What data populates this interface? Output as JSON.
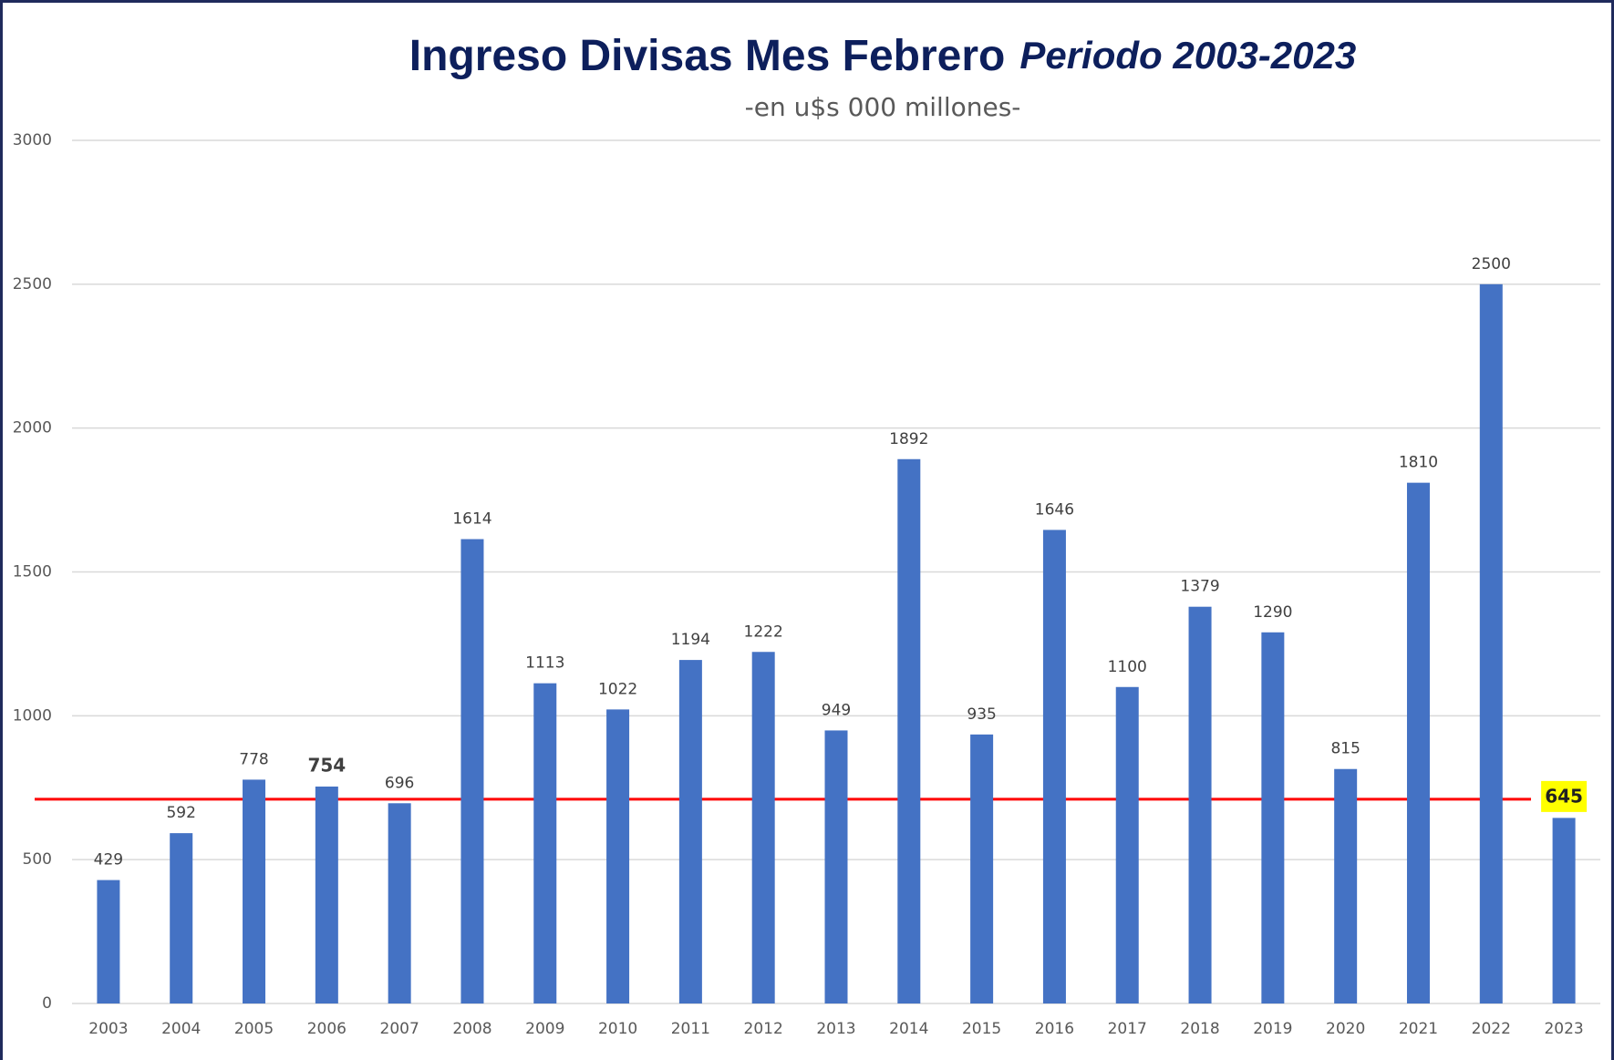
{
  "chart_data": {
    "type": "bar",
    "title": "Ingreso Divisas  Mes Febrero",
    "title_suffix": "Periodo 2003-2023",
    "subtitle": "-en u$s 000 millones-",
    "categories": [
      "2003",
      "2004",
      "2005",
      "2006",
      "2007",
      "2008",
      "2009",
      "2010",
      "2011",
      "2012",
      "2013",
      "2014",
      "2015",
      "2016",
      "2017",
      "2018",
      "2019",
      "2020",
      "2021",
      "2022",
      "2023"
    ],
    "values": [
      429,
      592,
      778,
      754,
      696,
      1614,
      1113,
      1022,
      1194,
      1222,
      949,
      1892,
      935,
      1646,
      1100,
      1379,
      1290,
      815,
      1810,
      2500,
      645
    ],
    "color": "#4472c4",
    "bold_labels": [
      3,
      20
    ],
    "highlight_label": 20,
    "highlight_color": "#ffff00",
    "reference_line": 710,
    "reference_color": "#ff0000",
    "ylim": [
      0,
      3000
    ],
    "yticks": [
      0,
      500,
      1000,
      1500,
      2000,
      2500,
      3000
    ],
    "grid": true
  }
}
